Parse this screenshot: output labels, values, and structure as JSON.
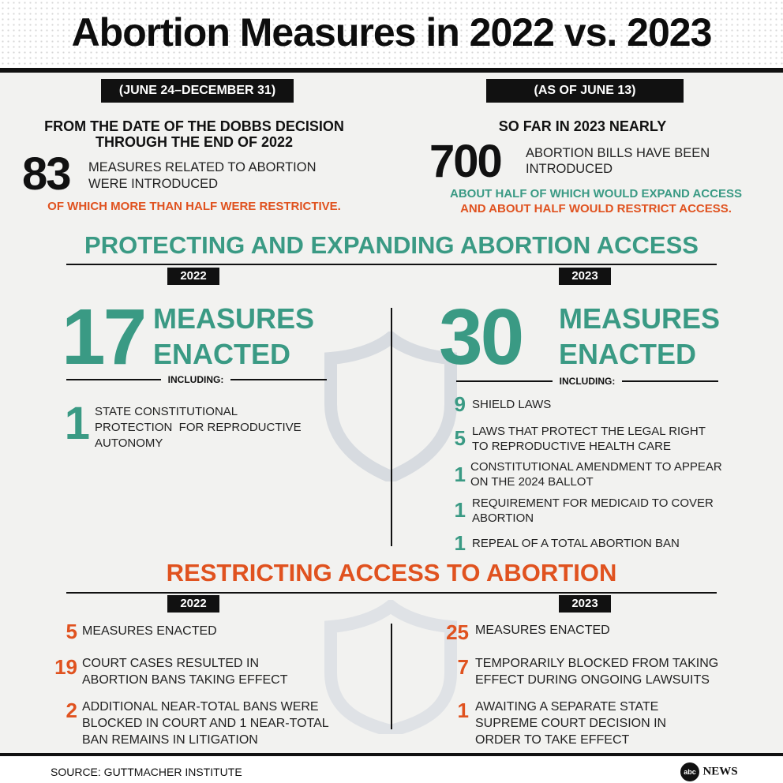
{
  "title": "Abortion Measures in 2022 vs. 2023",
  "col2022": {
    "date_range": "(JUNE 24–DECEMBER 31)",
    "lead_line1": "FROM THE DATE OF THE DOBBS DECISION",
    "lead_line2": "THROUGH THE END OF 2022",
    "count": "83",
    "count_text_line1": "MEASURES RELATED TO ABORTION",
    "count_text_line2": "WERE INTRODUCED",
    "note": "OF WHICH MORE THAN HALF WERE RESTRICTIVE."
  },
  "col2023": {
    "date_range": "(AS OF JUNE 13)",
    "lead": "SO FAR IN 2023 NEARLY",
    "count": "700",
    "count_text_line1": "ABORTION BILLS HAVE BEEN",
    "count_text_line2": "INTRODUCED",
    "note_line1": "ABOUT HALF OF WHICH WOULD EXPAND ACCESS",
    "note_line2": "AND ABOUT HALF WOULD RESTRICT ACCESS."
  },
  "protect": {
    "title": "PROTECTING AND EXPANDING ABORTION ACCESS",
    "year_2022": "2022",
    "year_2023": "2023",
    "enacted_2022": "17",
    "enacted_2023": "30",
    "measures_word": "MEASURES",
    "enacted_word": "ENACTED",
    "including": "INCLUDING:",
    "items_2022": [
      {
        "num": "1",
        "line1": "STATE CONSTITUTIONAL",
        "line2": "PROTECTION  FOR REPRODUCTIVE",
        "line3": "AUTONOMY"
      }
    ],
    "items_2023": [
      {
        "num": "9",
        "line1": "SHIELD LAWS",
        "line2": ""
      },
      {
        "num": "5",
        "line1": "LAWS THAT PROTECT THE LEGAL RIGHT",
        "line2": "TO REPRODUCTIVE HEALTH CARE"
      },
      {
        "num": "1",
        "line1": "CONSTITUTIONAL AMENDMENT TO APPEAR",
        "line2": "ON THE 2024 BALLOT"
      },
      {
        "num": "1",
        "line1": "REQUIREMENT FOR MEDICAID TO COVER",
        "line2": "ABORTION"
      },
      {
        "num": "1",
        "line1": "REPEAL OF A TOTAL ABORTION BAN",
        "line2": ""
      }
    ]
  },
  "restrict": {
    "title": "RESTRICTING ACCESS TO ABORTION",
    "year_2022": "2022",
    "year_2023": "2023",
    "items_2022": [
      {
        "num": "5",
        "line1": "MEASURES ENACTED",
        "line2": "",
        "line3": ""
      },
      {
        "num": "19",
        "line1": "COURT CASES RESULTED IN",
        "line2": "ABORTION BANS TAKING EFFECT",
        "line3": ""
      },
      {
        "num": "2",
        "line1": "ADDITIONAL NEAR-TOTAL BANS WERE",
        "line2": "BLOCKED IN COURT AND 1 NEAR-TOTAL",
        "line3": "BAN REMAINS IN LITIGATION"
      }
    ],
    "items_2023": [
      {
        "num": "25",
        "line1": "MEASURES ENACTED",
        "line2": "",
        "line3": ""
      },
      {
        "num": "7",
        "line1": "TEMPORARILY BLOCKED FROM TAKING",
        "line2": "EFFECT DURING ONGOING LAWSUITS",
        "line3": ""
      },
      {
        "num": "1",
        "line1": "AWAITING A SEPARATE STATE",
        "line2": "SUPREME COURT DECISION IN",
        "line3": "ORDER TO TAKE EFFECT"
      }
    ]
  },
  "source": "SOURCE: GUTTMACHER INSTITUTE",
  "logo_abc": "abc",
  "logo_news": "NEWS",
  "colors": {
    "teal": "#3a9a84",
    "orange": "#e0521f",
    "black": "#111111"
  }
}
